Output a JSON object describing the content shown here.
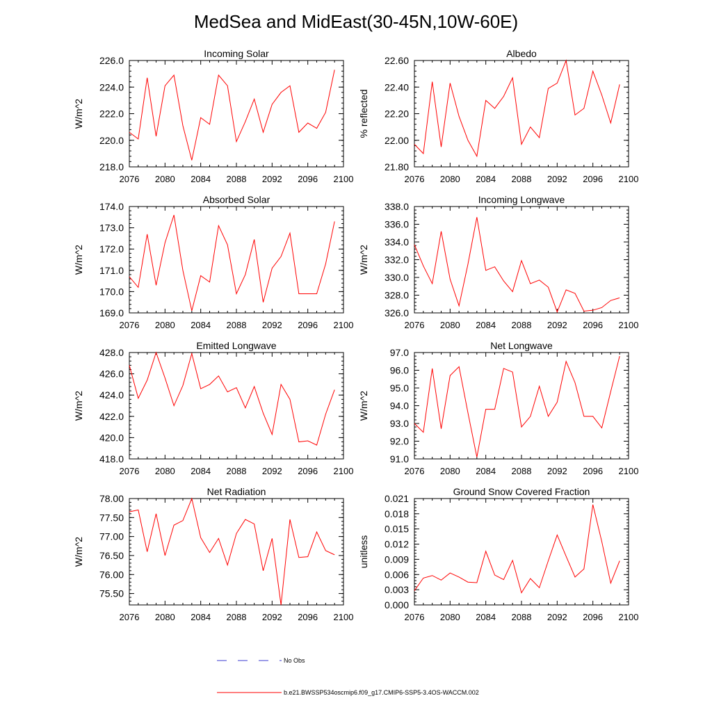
{
  "figure_title": "MedSea and MidEast(30-45N,10W-60E)",
  "colors": {
    "model": "#ff0000",
    "obs": "#3b3bd0",
    "axis": "#000000"
  },
  "legend": {
    "obs_label": "No Obs",
    "model_label": "b.e21.BWSSP534oscmip6.f09_g17.CMIP6-SSP5-3.4OS-WACCM.002"
  },
  "chart_data": [
    {
      "type": "line",
      "title": "Incoming Solar",
      "ylabel": "W/m^2",
      "xlim": [
        2076,
        2100
      ],
      "xticks": [
        2076,
        2080,
        2084,
        2088,
        2092,
        2096,
        2100
      ],
      "ylim": [
        218,
        226
      ],
      "yticks": [
        218,
        220,
        222,
        224,
        226
      ],
      "ydecimals": 1,
      "series": [
        {
          "name": "b.e21.BWSSP534oscmip6.f09_g17.CMIP6-SSP5-3.4OS-WACCM.002",
          "x": [
            2076,
            2077,
            2078,
            2079,
            2080,
            2081,
            2082,
            2083,
            2084,
            2085,
            2086,
            2087,
            2088,
            2089,
            2090,
            2091,
            2092,
            2093,
            2094,
            2095,
            2096,
            2097,
            2098,
            2099
          ],
          "y": [
            220.6,
            220.1,
            224.7,
            220.3,
            224.1,
            224.9,
            221.1,
            218.5,
            221.7,
            221.2,
            224.9,
            224.1,
            219.9,
            221.4,
            223.1,
            220.6,
            222.7,
            223.6,
            224.1,
            220.6,
            221.3,
            220.9,
            222.1,
            225.3
          ]
        }
      ]
    },
    {
      "type": "line",
      "title": "Albedo",
      "ylabel": "% reflected",
      "xlim": [
        2076,
        2100
      ],
      "xticks": [
        2076,
        2080,
        2084,
        2088,
        2092,
        2096,
        2100
      ],
      "ylim": [
        21.8,
        22.6
      ],
      "yticks": [
        21.8,
        22.0,
        22.2,
        22.4,
        22.6
      ],
      "ydecimals": 2,
      "series": [
        {
          "name": "b.e21.BWSSP534oscmip6.f09_g17.CMIP6-SSP5-3.4OS-WACCM.002",
          "x": [
            2076,
            2077,
            2078,
            2079,
            2080,
            2081,
            2082,
            2083,
            2084,
            2085,
            2086,
            2087,
            2088,
            2089,
            2090,
            2091,
            2092,
            2093,
            2094,
            2095,
            2096,
            2097,
            2098,
            2099
          ],
          "y": [
            21.97,
            21.9,
            22.44,
            21.95,
            22.43,
            22.18,
            22.0,
            21.88,
            22.3,
            22.24,
            22.33,
            22.47,
            21.97,
            22.1,
            22.02,
            22.39,
            22.43,
            22.6,
            22.19,
            22.24,
            22.52,
            22.34,
            22.13,
            22.42
          ]
        }
      ]
    },
    {
      "type": "line",
      "title": "Absorbed Solar",
      "ylabel": "W/m^2",
      "xlim": [
        2076,
        2100
      ],
      "xticks": [
        2076,
        2080,
        2084,
        2088,
        2092,
        2096,
        2100
      ],
      "ylim": [
        169,
        174
      ],
      "yticks": [
        169,
        170,
        171,
        172,
        173,
        174
      ],
      "ydecimals": 1,
      "series": [
        {
          "name": "b.e21.BWSSP534oscmip6.f09_g17.CMIP6-SSP5-3.4OS-WACCM.002",
          "x": [
            2076,
            2077,
            2078,
            2079,
            2080,
            2081,
            2082,
            2083,
            2084,
            2085,
            2086,
            2087,
            2088,
            2089,
            2090,
            2091,
            2092,
            2093,
            2094,
            2095,
            2096,
            2097,
            2098,
            2099
          ],
          "y": [
            170.7,
            170.2,
            172.7,
            170.3,
            172.3,
            173.6,
            171.0,
            169.1,
            170.75,
            170.45,
            173.1,
            172.2,
            169.9,
            170.8,
            172.45,
            169.5,
            171.1,
            171.65,
            172.75,
            169.9,
            169.9,
            169.9,
            171.3,
            173.3
          ]
        }
      ]
    },
    {
      "type": "line",
      "title": "Incoming Longwave",
      "ylabel": "W/m^2",
      "xlim": [
        2076,
        2100
      ],
      "xticks": [
        2076,
        2080,
        2084,
        2088,
        2092,
        2096,
        2100
      ],
      "ylim": [
        326,
        338
      ],
      "yticks": [
        326,
        328,
        330,
        332,
        334,
        336,
        338
      ],
      "ydecimals": 1,
      "series": [
        {
          "name": "b.e21.BWSSP534oscmip6.f09_g17.CMIP6-SSP5-3.4OS-WACCM.002",
          "x": [
            2076,
            2077,
            2078,
            2079,
            2080,
            2081,
            2082,
            2083,
            2084,
            2085,
            2086,
            2087,
            2088,
            2089,
            2090,
            2091,
            2092,
            2093,
            2094,
            2095,
            2096,
            2097,
            2098,
            2099
          ],
          "y": [
            333.7,
            331.3,
            329.3,
            335.2,
            329.8,
            326.8,
            331.5,
            336.8,
            330.8,
            331.2,
            329.6,
            328.4,
            331.9,
            329.3,
            329.7,
            328.9,
            326.1,
            328.6,
            328.2,
            326.2,
            326.3,
            326.6,
            327.4,
            327.7
          ]
        }
      ]
    },
    {
      "type": "line",
      "title": "Emitted Longwave",
      "ylabel": "W/m^2",
      "xlim": [
        2076,
        2100
      ],
      "xticks": [
        2076,
        2080,
        2084,
        2088,
        2092,
        2096,
        2100
      ],
      "ylim": [
        418,
        428
      ],
      "yticks": [
        418,
        420,
        422,
        424,
        426,
        428
      ],
      "ydecimals": 1,
      "series": [
        {
          "name": "b.e21.BWSSP534oscmip6.f09_g17.CMIP6-SSP5-3.4OS-WACCM.002",
          "x": [
            2076,
            2077,
            2078,
            2079,
            2080,
            2081,
            2082,
            2083,
            2084,
            2085,
            2086,
            2087,
            2088,
            2089,
            2090,
            2091,
            2092,
            2093,
            2094,
            2095,
            2096,
            2097,
            2098,
            2099
          ],
          "y": [
            426.8,
            423.7,
            425.4,
            428.0,
            425.6,
            423.0,
            424.9,
            427.9,
            424.6,
            425.0,
            425.8,
            424.3,
            424.7,
            422.8,
            424.8,
            422.3,
            420.3,
            425.0,
            423.6,
            419.6,
            419.7,
            419.3,
            422.2,
            424.5
          ]
        }
      ]
    },
    {
      "type": "line",
      "title": "Net Longwave",
      "ylabel": "W/m^2",
      "xlim": [
        2076,
        2100
      ],
      "xticks": [
        2076,
        2080,
        2084,
        2088,
        2092,
        2096,
        2100
      ],
      "ylim": [
        91,
        97
      ],
      "yticks": [
        91,
        92,
        93,
        94,
        95,
        96,
        97
      ],
      "ydecimals": 1,
      "series": [
        {
          "name": "b.e21.BWSSP534oscmip6.f09_g17.CMIP6-SSP5-3.4OS-WACCM.002",
          "x": [
            2076,
            2077,
            2078,
            2079,
            2080,
            2081,
            2082,
            2083,
            2084,
            2085,
            2086,
            2087,
            2088,
            2089,
            2090,
            2091,
            2092,
            2093,
            2094,
            2095,
            2096,
            2097,
            2098,
            2099
          ],
          "y": [
            93.0,
            92.5,
            96.1,
            92.7,
            95.7,
            96.2,
            93.6,
            91.1,
            93.8,
            93.8,
            96.1,
            95.9,
            92.8,
            93.4,
            95.1,
            93.4,
            94.2,
            96.5,
            95.3,
            93.4,
            93.4,
            92.75,
            94.8,
            96.8
          ]
        }
      ]
    },
    {
      "type": "line",
      "title": "Net Radiation",
      "ylabel": "W/m^2",
      "xlim": [
        2076,
        2100
      ],
      "xticks": [
        2076,
        2080,
        2084,
        2088,
        2092,
        2096,
        2100
      ],
      "ylim": [
        75.2,
        78.0
      ],
      "yticks": [
        75.5,
        76.0,
        76.5,
        77.0,
        77.5,
        78.0
      ],
      "ydecimals": 2,
      "series": [
        {
          "name": "b.e21.BWSSP534oscmip6.f09_g17.CMIP6-SSP5-3.4OS-WACCM.002",
          "x": [
            2076,
            2077,
            2078,
            2079,
            2080,
            2081,
            2082,
            2083,
            2084,
            2085,
            2086,
            2087,
            2088,
            2089,
            2090,
            2091,
            2092,
            2093,
            2094,
            2095,
            2096,
            2097,
            2098,
            2099
          ],
          "y": [
            77.65,
            77.7,
            76.6,
            77.6,
            76.5,
            77.3,
            77.42,
            78.0,
            76.97,
            76.58,
            76.95,
            76.25,
            77.08,
            77.45,
            77.33,
            76.1,
            76.95,
            75.2,
            77.45,
            76.45,
            76.47,
            77.12,
            76.63,
            76.52
          ]
        }
      ]
    },
    {
      "type": "line",
      "title": "Ground Snow Covered Fraction",
      "ylabel": "unitless",
      "xlim": [
        2076,
        2100
      ],
      "xticks": [
        2076,
        2080,
        2084,
        2088,
        2092,
        2096,
        2100
      ],
      "ylim": [
        0,
        0.021
      ],
      "yticks": [
        0.0,
        0.003,
        0.006,
        0.009,
        0.012,
        0.015,
        0.018,
        0.021
      ],
      "ydecimals": 3,
      "series": [
        {
          "name": "b.e21.BWSSP534oscmip6.f09_g17.CMIP6-SSP5-3.4OS-WACCM.002",
          "x": [
            2076,
            2077,
            2078,
            2079,
            2080,
            2081,
            2082,
            2083,
            2084,
            2085,
            2086,
            2087,
            2088,
            2089,
            2090,
            2091,
            2092,
            2093,
            2094,
            2095,
            2096,
            2097,
            2098,
            2099
          ],
          "y": [
            0.0028,
            0.0053,
            0.0058,
            0.0049,
            0.0063,
            0.0055,
            0.0045,
            0.0044,
            0.0106,
            0.0059,
            0.005,
            0.0088,
            0.0024,
            0.0052,
            0.0034,
            0.0087,
            0.0138,
            0.0096,
            0.0055,
            0.0071,
            0.0198,
            0.0125,
            0.0043,
            0.0087
          ]
        }
      ]
    }
  ]
}
